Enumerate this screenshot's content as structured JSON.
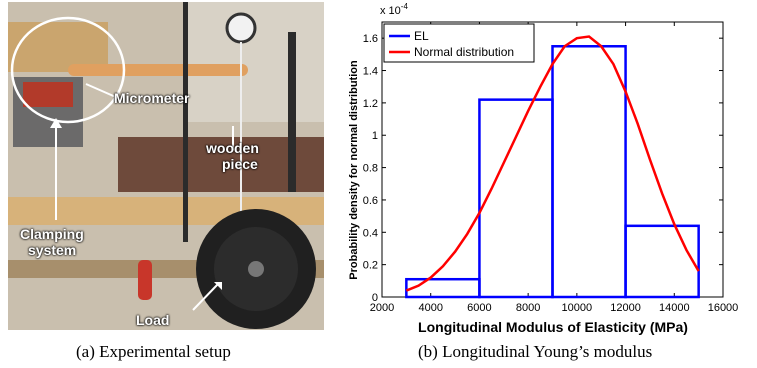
{
  "panel_a": {
    "caption": "(a) Experimental setup",
    "labels": {
      "micrometer": "Micrometer",
      "wooden_piece_1": "wooden",
      "wooden_piece_2": "piece",
      "clamping_1": "Clamping",
      "clamping_2": "system",
      "load": "Load"
    }
  },
  "panel_b": {
    "caption": "(b) Longitudinal Young’s modulus"
  },
  "chart_data": {
    "type": "bar",
    "title": "",
    "xlabel": "Longitudinal Modulus of Elasticity (MPa)",
    "ylabel": "Probability density for normal distribution",
    "scale_label": "x 10",
    "scale_exponent": "-4",
    "xlim": [
      2000,
      16000
    ],
    "ylim": [
      0,
      1.7
    ],
    "xticks": [
      2000,
      4000,
      6000,
      8000,
      10000,
      12000,
      14000,
      16000
    ],
    "yticks": [
      0,
      0.2,
      0.4,
      0.6,
      0.8,
      1,
      1.2,
      1.4,
      1.6
    ],
    "grid": false,
    "legend_position": "top-left",
    "series": [
      {
        "name": "EL",
        "type": "histogram",
        "color": "#0000ff",
        "bins": [
          {
            "x0": 3000,
            "x1": 6000,
            "value": 0.11
          },
          {
            "x0": 6000,
            "x1": 9000,
            "value": 1.22
          },
          {
            "x0": 9000,
            "x1": 12000,
            "value": 1.55
          },
          {
            "x0": 12000,
            "x1": 15000,
            "value": 0.44
          }
        ]
      },
      {
        "name": "Normal distribution",
        "type": "line",
        "color": "#ff0000",
        "x": [
          3000,
          3500,
          4000,
          4500,
          5000,
          5500,
          6000,
          6500,
          7000,
          7500,
          8000,
          8500,
          9000,
          9500,
          10000,
          10500,
          11000,
          11500,
          12000,
          12500,
          13000,
          13500,
          14000,
          14500,
          15000
        ],
        "y": [
          0.04,
          0.07,
          0.12,
          0.19,
          0.28,
          0.39,
          0.52,
          0.67,
          0.83,
          0.99,
          1.15,
          1.3,
          1.44,
          1.55,
          1.6,
          1.61,
          1.55,
          1.44,
          1.27,
          1.07,
          0.85,
          0.64,
          0.45,
          0.29,
          0.16
        ]
      }
    ]
  }
}
